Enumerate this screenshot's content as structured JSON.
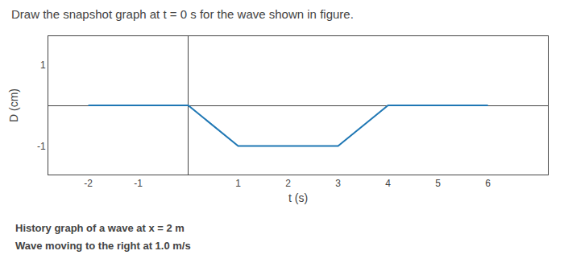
{
  "chart_data": {
    "type": "line",
    "title": "Draw the snapshot graph at t = 0 s for the wave shown in figure.",
    "x_label": "t (s)",
    "y_label": "D (cm)",
    "annotations": [
      "History graph of a wave at x = 2 m",
      "Wave moving to the right at 1.0 m/s"
    ],
    "x": [
      -2,
      0,
      1,
      3,
      4,
      6
    ],
    "values": [
      0,
      0,
      -1,
      -1,
      0,
      0
    ],
    "xlim": [
      -2.8,
      7.2
    ],
    "ylim": [
      -1.7,
      1.7
    ],
    "xticks": [
      -2,
      -1,
      1,
      2,
      3,
      4,
      5,
      6
    ],
    "yticks": [
      -1,
      1
    ],
    "grid": false
  }
}
